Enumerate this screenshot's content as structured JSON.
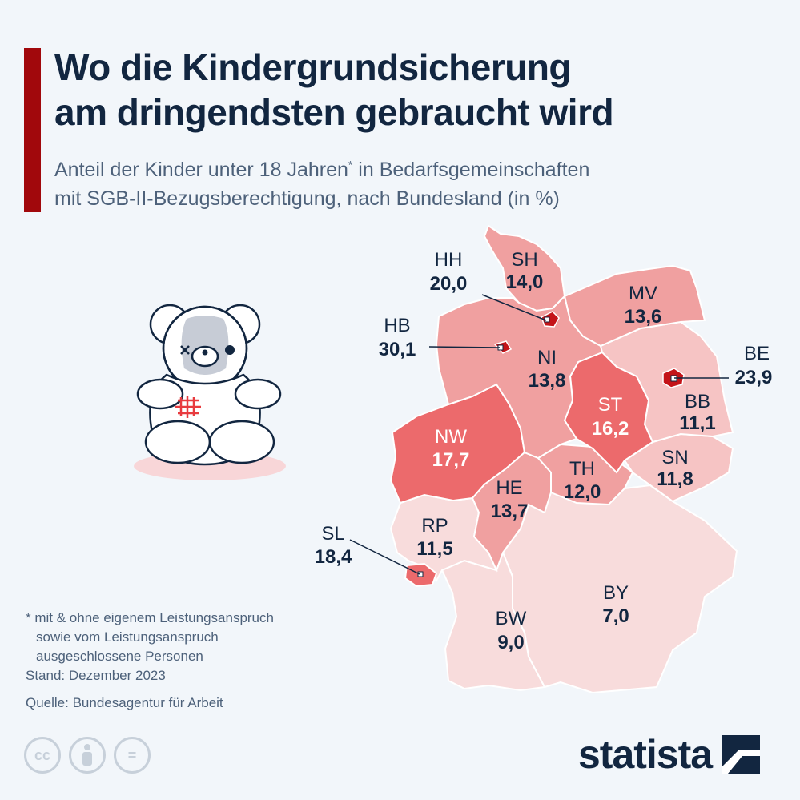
{
  "header": {
    "title_line1": "Wo die Kindergrundsicherung",
    "title_line2": "am dringendsten gebraucht wird",
    "subtitle_line1_pre": "Anteil der Kinder unter 18 Jahren",
    "subtitle_line1_sup": "*",
    "subtitle_line1_post": " in Bedarfsgemeinschaften",
    "subtitle_line2": "mit SGB-II-Bezugsberechtigung, nach Bundesland (in %)"
  },
  "colors": {
    "background": "#f2f6fa",
    "accent": "#a1080c",
    "text_dark": "#122640",
    "text_muted": "#4d617a",
    "scale_lightest": "#f8dcdc",
    "scale_light": "#f6c4c4",
    "scale_mid": "#f0a0a0",
    "scale_strong": "#ec6a6c",
    "scale_darkest": "#c41419"
  },
  "states": [
    {
      "code": "SH",
      "value": "14,0"
    },
    {
      "code": "HH",
      "value": "20,0"
    },
    {
      "code": "MV",
      "value": "13,6"
    },
    {
      "code": "HB",
      "value": "30,1"
    },
    {
      "code": "NI",
      "value": "13,8"
    },
    {
      "code": "BE",
      "value": "23,9"
    },
    {
      "code": "ST",
      "value": "16,2"
    },
    {
      "code": "BB",
      "value": "11,1"
    },
    {
      "code": "NW",
      "value": "17,7"
    },
    {
      "code": "SN",
      "value": "11,8"
    },
    {
      "code": "TH",
      "value": "12,0"
    },
    {
      "code": "HE",
      "value": "13,7"
    },
    {
      "code": "SL",
      "value": "18,4"
    },
    {
      "code": "RP",
      "value": "11,5"
    },
    {
      "code": "BY",
      "value": "7,0"
    },
    {
      "code": "BW",
      "value": "9,0"
    }
  ],
  "notes": {
    "line1": "* mit & ohne eigenem Leistungsanspruch",
    "line2": "sowie vom Leistungsanspruch",
    "line3": "ausgeschlossene Personen",
    "stand": "Stand: Dezember 2023",
    "source": "Quelle: Bundesagentur für Arbeit"
  },
  "license_icons": [
    "cc-icon",
    "attribution-icon",
    "no-derivatives-icon"
  ],
  "license_text": {
    "cc": "cc",
    "nd": "="
  },
  "brand": {
    "name": "statista",
    "icon": "statista-logo-icon"
  }
}
